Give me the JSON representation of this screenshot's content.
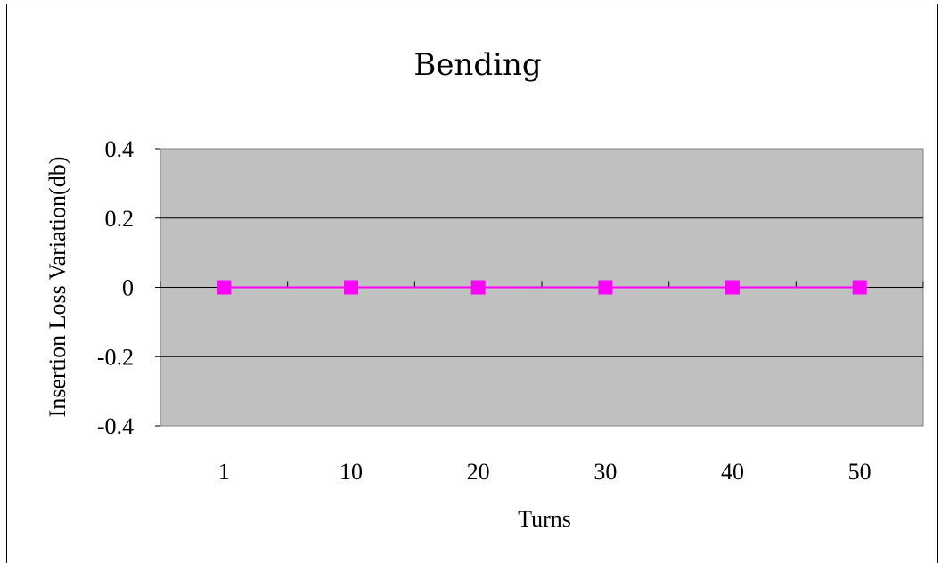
{
  "chart_data": {
    "type": "line",
    "title": "Bending",
    "xlabel": "Turns",
    "ylabel": "Insertion Loss Variation(db)",
    "categories": [
      "1",
      "10",
      "20",
      "30",
      "40",
      "50"
    ],
    "series": [
      {
        "values": [
          0,
          0,
          0,
          0,
          0,
          0
        ],
        "color": "#ff00ff",
        "marker": "square"
      }
    ],
    "ylim": [
      -0.4,
      0.4
    ],
    "yticks": [
      0.4,
      0.2,
      0,
      -0.2,
      -0.4
    ],
    "ytick_labels": [
      "0.4",
      "0.2",
      "0",
      "-0.2",
      "-0.4"
    ],
    "grid": true,
    "plot_background": "#c0c0c0",
    "legend": "none"
  }
}
